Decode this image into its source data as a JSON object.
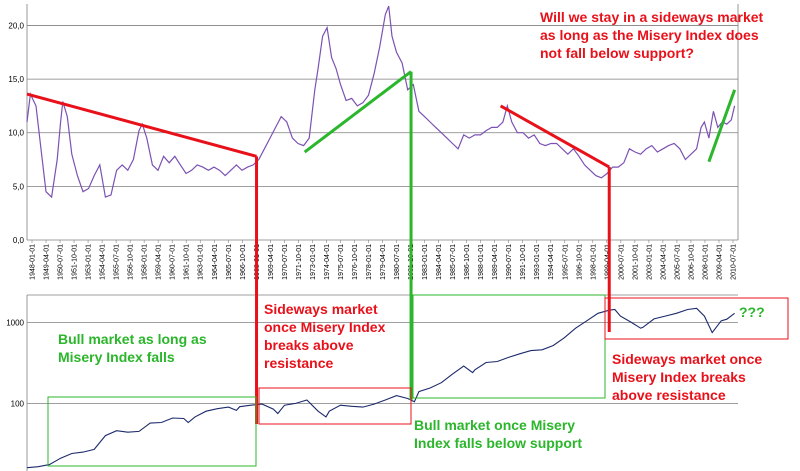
{
  "colors": {
    "misery_line": "#7b52b3",
    "sp_line": "#1c2a6b",
    "red": "#e8111a",
    "green": "#2bb62b",
    "grid": "#7f7f7f"
  },
  "annotations": {
    "question": "Will we stay in a sideways market\nas long as the Misery Index does\nnot fall below support?",
    "bull_falls": "Bull market as long as\nMisery Index falls",
    "sideways_1": "Sideways market\nonce Misery Index\nbreaks above\nresistance",
    "bull_support": "Bull market once Misery\nIndex falls below support",
    "sideways_2": "Sideways market once\nMisery Index breaks\nabove resistance",
    "question_marks": "???"
  },
  "chart_data": [
    {
      "type": "line",
      "title": "",
      "ylabel": "",
      "ylim": [
        0,
        22
      ],
      "yticks": [
        "0,0",
        "5,0",
        "10,0",
        "15,0",
        "20,0"
      ],
      "ytick_values": [
        0,
        5,
        10,
        15,
        20
      ],
      "grid": true,
      "xticks": [
        "1948-01-01",
        "1949-04-01",
        "1950-07-01",
        "1951-10-01",
        "1953-01-01",
        "1954-04-01",
        "1955-07-01",
        "1956-10-01",
        "1958-01-01",
        "1959-04-01",
        "1960-07-01",
        "1961-10-01",
        "1963-01-01",
        "1964-04-01",
        "1965-07-01",
        "1966-10-01",
        "1968-01-01",
        "1969-04-01",
        "1970-07-01",
        "1971-10-01",
        "1973-01-01",
        "1974-04-01",
        "1975-07-01",
        "1976-10-01",
        "1978-01-01",
        "1979-04-01",
        "1980-07-01",
        "1981-10-01",
        "1983-01-01",
        "1984-04-01",
        "1985-07-01",
        "1986-10-01",
        "1988-01-01",
        "1989-04-01",
        "1990-07-01",
        "1991-10-01",
        "1993-01-01",
        "1994-04-01",
        "1995-07-01",
        "1996-10-01",
        "1998-01-01",
        "1999-04-01",
        "2000-07-01",
        "2001-10-01",
        "2003-01-01",
        "2004-04-01",
        "2005-07-01",
        "2006-10-01",
        "2008-01-01",
        "2009-04-01",
        "2010-07-01"
      ],
      "series": [
        {
          "x": [
            1948.0,
            1948.3,
            1948.8,
            1949.3,
            1949.7,
            1950.2,
            1950.7,
            1951.0,
            1951.2,
            1951.6,
            1952.0,
            1952.5,
            1953.0,
            1953.5,
            1954.0,
            1954.5,
            1955.0,
            1955.5,
            1956.0,
            1956.5,
            1957.0,
            1957.5,
            1958.0,
            1958.3,
            1958.7,
            1959.2,
            1959.7,
            1960.2,
            1960.7,
            1961.2,
            1961.7,
            1962.2,
            1962.7,
            1963.2,
            1963.7,
            1964.2,
            1964.7,
            1965.2,
            1965.7,
            1966.2,
            1966.7,
            1967.2,
            1967.7,
            1968.2,
            1968.7,
            1969.2,
            1969.7,
            1970.2,
            1970.7,
            1971.2,
            1971.7,
            1972.2,
            1972.7,
            1973.2,
            1973.7,
            1974.0,
            1974.4,
            1974.8,
            1975.2,
            1975.6,
            1976.0,
            1976.5,
            1977.0,
            1977.5,
            1978.0,
            1978.5,
            1979.0,
            1979.5,
            1980.0,
            1980.3,
            1980.6,
            1981.0,
            1981.5,
            1982.0,
            1982.5,
            1983.0,
            1983.5,
            1984.0,
            1984.5,
            1985.0,
            1985.5,
            1986.0,
            1986.5,
            1987.0,
            1987.5,
            1988.0,
            1988.5,
            1989.0,
            1989.5,
            1990.0,
            1990.5,
            1990.9,
            1991.3,
            1991.8,
            1992.3,
            1992.8,
            1993.3,
            1993.8,
            1994.3,
            1994.8,
            1995.3,
            1995.8,
            1996.3,
            1996.8,
            1997.3,
            1997.8,
            1998.3,
            1998.8,
            1999.3,
            1999.8,
            2000.3,
            2000.8,
            2001.3,
            2001.8,
            2002.3,
            2002.8,
            2003.3,
            2003.8,
            2004.3,
            2004.8,
            2005.3,
            2005.8,
            2006.3,
            2006.8,
            2007.3,
            2007.8,
            2008.2,
            2008.5,
            2008.9,
            2009.3,
            2009.7,
            2010.1,
            2010.5,
            2010.9,
            2011.2
          ],
          "y": [
            11.0,
            13.6,
            12.5,
            8.0,
            4.5,
            4.0,
            7.5,
            11.0,
            12.9,
            11.5,
            8.0,
            6.0,
            4.5,
            4.8,
            6.0,
            7.0,
            4.0,
            4.2,
            6.5,
            7.0,
            6.5,
            7.5,
            10.2,
            10.8,
            9.5,
            7.0,
            6.5,
            7.8,
            7.2,
            7.8,
            7.0,
            6.2,
            6.5,
            7.0,
            6.8,
            6.5,
            6.8,
            6.5,
            6.0,
            6.5,
            7.0,
            6.5,
            6.8,
            7.0,
            7.5,
            8.5,
            9.5,
            10.5,
            11.5,
            11.0,
            9.5,
            9.0,
            8.8,
            9.5,
            14.0,
            16.0,
            19.0,
            19.8,
            17.0,
            16.0,
            14.5,
            13.0,
            13.2,
            12.5,
            12.8,
            13.5,
            15.5,
            18.0,
            21.0,
            21.8,
            19.0,
            17.5,
            16.5,
            14.0,
            14.5,
            12.0,
            11.5,
            11.0,
            10.5,
            10.0,
            9.5,
            9.0,
            8.5,
            9.8,
            9.5,
            9.8,
            9.8,
            10.2,
            10.5,
            10.5,
            11.0,
            12.5,
            11.0,
            10.0,
            10.0,
            9.5,
            9.8,
            9.0,
            8.8,
            9.0,
            9.0,
            8.5,
            8.0,
            8.5,
            7.8,
            7.0,
            6.5,
            6.0,
            5.8,
            6.2,
            6.8,
            6.8,
            7.2,
            8.5,
            8.2,
            8.0,
            8.5,
            8.8,
            8.2,
            8.5,
            8.8,
            9.0,
            8.5,
            7.5,
            8.0,
            8.5,
            10.5,
            11.0,
            9.5,
            12.0,
            10.5,
            11.0,
            10.8,
            11.2,
            12.5
          ]
        }
      ]
    },
    {
      "type": "line",
      "title": "",
      "ylabel": "",
      "yscale": "log",
      "yticks": [
        "100",
        "1000"
      ],
      "ytick_values": [
        100,
        1000
      ],
      "grid": true,
      "series": [
        {
          "x": [
            1948.0,
            1949.0,
            1950.0,
            1951.0,
            1952.0,
            1953.0,
            1954.0,
            1955.0,
            1956.0,
            1957.0,
            1958.0,
            1959.0,
            1960.0,
            1961.0,
            1962.0,
            1962.4,
            1963.0,
            1964.0,
            1965.0,
            1966.0,
            1966.7,
            1967.0,
            1968.0,
            1969.0,
            1970.0,
            1970.4,
            1971.0,
            1972.0,
            1973.0,
            1974.0,
            1974.7,
            1975.0,
            1976.0,
            1977.0,
            1978.0,
            1979.0,
            1980.0,
            1981.0,
            1982.0,
            1982.6,
            1983.0,
            1984.0,
            1985.0,
            1986.0,
            1987.0,
            1987.8,
            1988.0,
            1989.0,
            1990.0,
            1991.0,
            1992.0,
            1993.0,
            1994.0,
            1995.0,
            1996.0,
            1997.0,
            1998.0,
            1999.0,
            2000.0,
            2000.5,
            2001.0,
            2002.0,
            2002.8,
            2003.0,
            2004.0,
            2005.0,
            2006.0,
            2007.0,
            2007.8,
            2008.5,
            2009.2,
            2010.0,
            2010.5,
            2011.2
          ],
          "y": [
            16.0,
            16.5,
            17.5,
            21.0,
            24.0,
            25.0,
            27.0,
            40.0,
            46.0,
            44.0,
            45.0,
            57.0,
            58.0,
            66.0,
            65.0,
            58.0,
            68.0,
            80.0,
            86.0,
            90.0,
            82.0,
            91.0,
            95.0,
            98.0,
            85.0,
            75.0,
            95.0,
            100.0,
            110.0,
            80.0,
            68.0,
            80.0,
            95.0,
            92.0,
            90.0,
            98.0,
            110.0,
            125.0,
            115.0,
            105.0,
            140.0,
            155.0,
            180.0,
            230.0,
            290.0,
            240.0,
            260.0,
            320.0,
            330.0,
            370.0,
            410.0,
            450.0,
            460.0,
            520.0,
            650.0,
            850.0,
            1050.0,
            1300.0,
            1420.0,
            1450.0,
            1200.0,
            1000.0,
            850.0,
            870.0,
            1110.0,
            1200.0,
            1300.0,
            1450.0,
            1500.0,
            1200.0,
            750.0,
            1050.0,
            1100.0,
            1300.0
          ]
        }
      ]
    }
  ]
}
